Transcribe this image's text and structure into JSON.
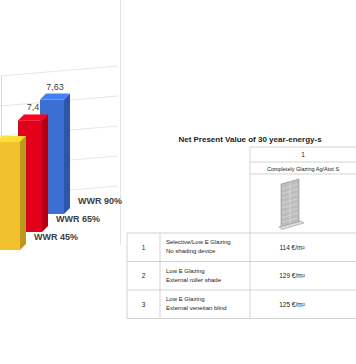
{
  "chart_data": {
    "type": "bar",
    "categories": [
      "WWR 45%",
      "WWR 65%",
      "WWR 90%"
    ],
    "values": [
      7.2,
      7.44,
      7.63
    ],
    "value_labels": [
      null,
      "7,4",
      "7,63"
    ],
    "colors": [
      "#f2c12e",
      "#e3001b",
      "#3b6fd4"
    ],
    "ylim": [
      0,
      8
    ],
    "yticks": [
      0,
      2,
      4,
      6,
      8
    ],
    "grid": true,
    "tick_labels": false,
    "data_labels": true
  },
  "table": {
    "title": "Net Present Value of 30 year-energy-s",
    "header": {
      "number": "1",
      "label": "Completely Glazing Ag/Atot S"
    },
    "rows": [
      [
        "1",
        "Selective/Low E Glazing",
        "No shading device",
        "114 €/m²"
      ],
      [
        "2",
        "Low E Glazing",
        "External roller shade",
        "129 €/m²"
      ],
      [
        "3",
        "Low E Glazing",
        "External venetian blind",
        "125 €/m²"
      ]
    ]
  }
}
